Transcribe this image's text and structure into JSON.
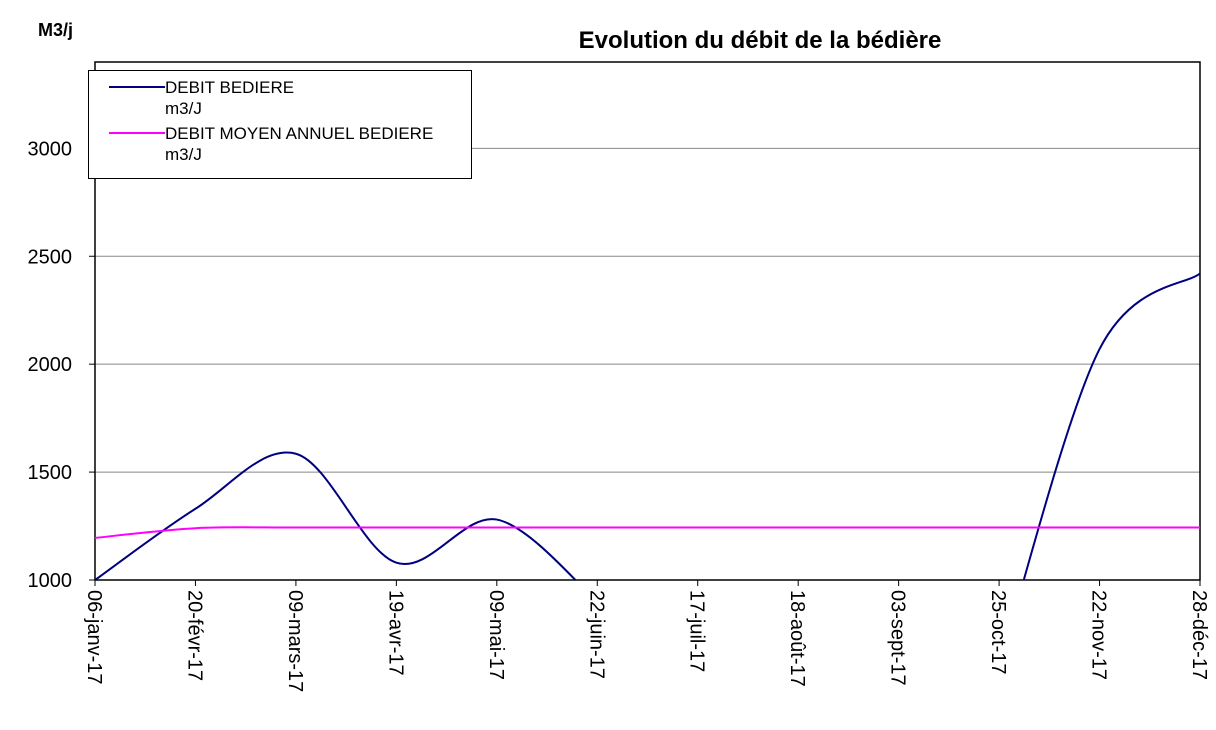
{
  "chart_data": {
    "type": "line",
    "title": "Evolution du débit de la bédière",
    "y_label": "M3/j",
    "categories": [
      "06-janv-17",
      "20-févr-17",
      "09-mars-17",
      "19-avr-17",
      "09-mai-17",
      "22-juin-17",
      "17-juil-17",
      "18-août-17",
      "03-sept-17",
      "25-oct-17",
      "22-nov-17",
      "28-déc-17"
    ],
    "series": [
      {
        "name": "DEBIT BEDIERE\n m3/J",
        "color": "#000080",
        "values": [
          1000,
          1330,
          1585,
          1080,
          1280,
          900,
          null,
          null,
          null,
          600,
          2070,
          2420
        ]
      },
      {
        "name": "DEBIT MOYEN ANNUEL BEDIERE m3/J",
        "color": "#ff00ff",
        "values": [
          1195,
          1240,
          1243,
          1243,
          1243,
          1243,
          1243,
          1243,
          1243,
          1243,
          1243,
          1243
        ]
      }
    ],
    "ylim": [
      1000,
      3400
    ],
    "yticks": [
      1000,
      1500,
      2000,
      2500,
      3000
    ],
    "grid": true
  }
}
